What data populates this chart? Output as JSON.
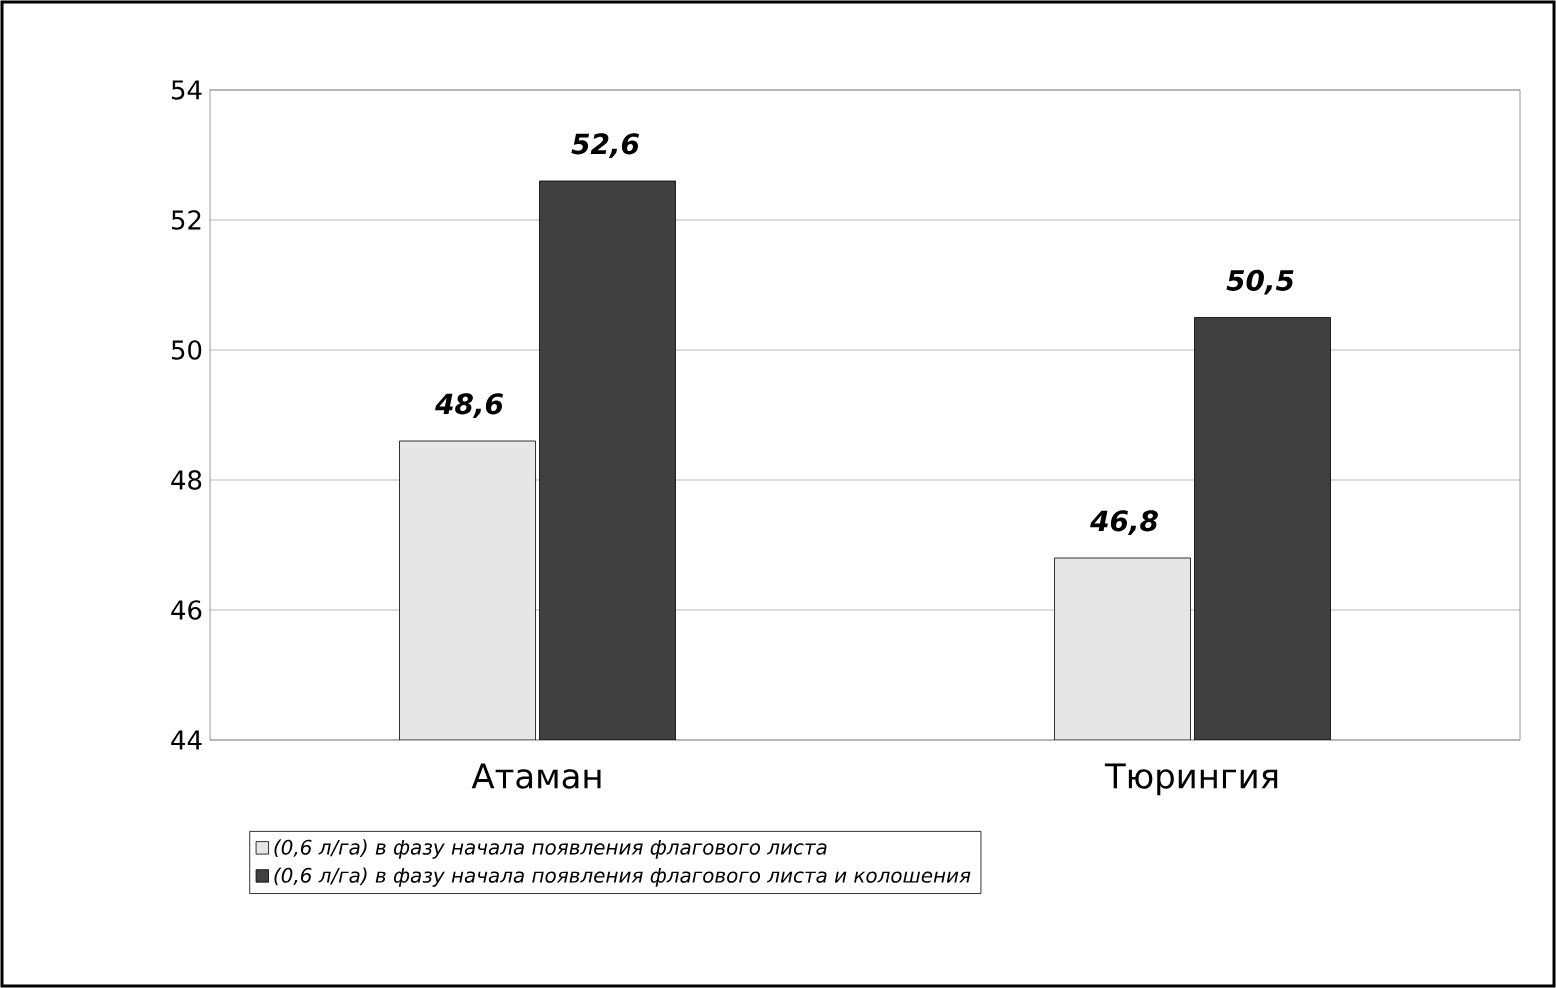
{
  "chart_data": {
    "type": "bar",
    "categories": [
      "Атаман",
      "Тюрингия"
    ],
    "series": [
      {
        "name": "(0,6 л/га) в фазу начала появления флагового листа",
        "color": "#e6e6e6",
        "values": [
          48.6,
          46.8
        ],
        "value_labels": [
          "48,6",
          "46,8"
        ]
      },
      {
        "name": "(0,6 л/га) в фазу начала появления флагового листа и колошения",
        "color": "#404040",
        "values": [
          52.6,
          50.5
        ],
        "value_labels": [
          "52,6",
          "50,5"
        ]
      }
    ],
    "ylim": [
      44,
      54
    ],
    "yticks": [
      44,
      46,
      48,
      50,
      52,
      54
    ],
    "grid": "y",
    "legend": "bottom"
  }
}
